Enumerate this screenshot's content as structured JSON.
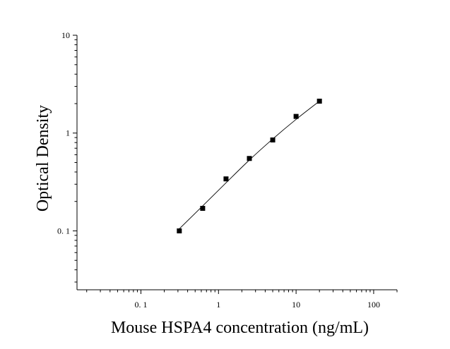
{
  "chart_data": {
    "type": "scatter",
    "title": "",
    "xlabel": "Mouse HSPA4 concentration (ng/mL)",
    "ylabel": "Optical Density",
    "x_scale": "log",
    "y_scale": "log",
    "xlim": [
      0.015,
      200
    ],
    "ylim": [
      0.025,
      10
    ],
    "x_ticks": [
      {
        "value": 0.1,
        "label": "0. 1"
      },
      {
        "value": 1,
        "label": "1"
      },
      {
        "value": 10,
        "label": "10"
      },
      {
        "value": 100,
        "label": "100"
      }
    ],
    "y_ticks": [
      {
        "value": 0.1,
        "label": "0. 1"
      },
      {
        "value": 1,
        "label": "1"
      },
      {
        "value": 10,
        "label": "10"
      }
    ],
    "grid": false,
    "legend": "none",
    "series": [
      {
        "marker": "square",
        "color": "#000000",
        "x": [
          0.3125,
          0.625,
          1.25,
          2.5,
          5,
          10,
          20
        ],
        "y": [
          0.1,
          0.17,
          0.34,
          0.55,
          0.85,
          1.48,
          2.12
        ]
      }
    ],
    "fit_curve": {
      "color": "#000000",
      "x": [
        0.3125,
        0.625,
        1.25,
        2.5,
        5,
        10,
        20
      ],
      "y": [
        0.105,
        0.18,
        0.31,
        0.53,
        0.87,
        1.38,
        2.12
      ]
    }
  }
}
